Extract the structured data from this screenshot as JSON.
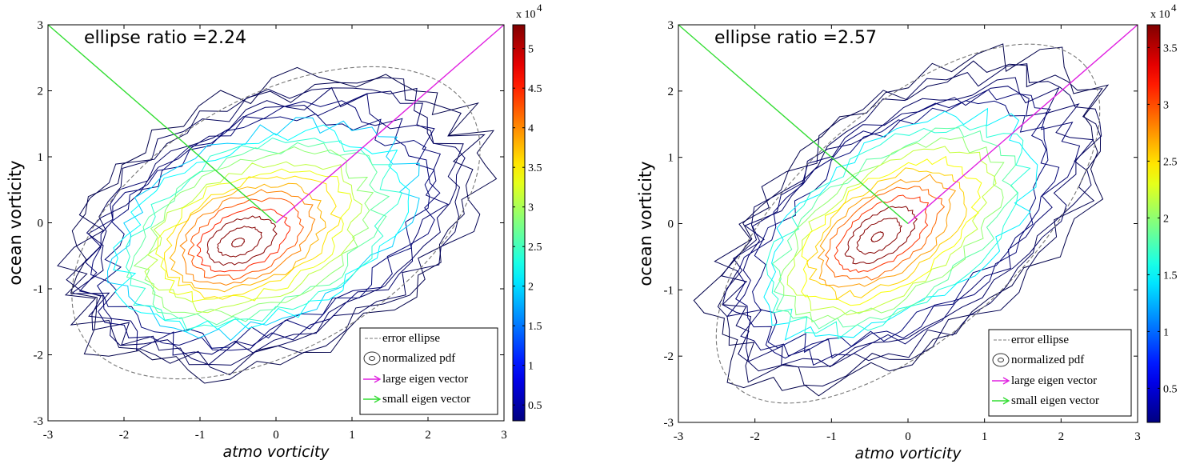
{
  "chart_data": [
    {
      "type": "contour",
      "annotation": "ellipse ratio =2.24",
      "xlabel": "atmo vorticity",
      "ylabel": "ocean vorticity",
      "xlim": [
        -3,
        3
      ],
      "ylim": [
        -3,
        3
      ],
      "xticks": [
        "-3",
        "-2",
        "-1",
        "0",
        "1",
        "2",
        "3"
      ],
      "yticks": [
        "-3",
        "-2",
        "-1",
        "0",
        "1",
        "2",
        "3"
      ],
      "colorbar": {
        "range": [
          0.3,
          5.3
        ],
        "ticks": [
          0.5,
          1,
          1.5,
          2,
          2.5,
          3,
          3.5,
          4,
          4.5,
          5
        ],
        "tick_labels": [
          "0.5",
          "1",
          "1.5",
          "2",
          "2.5",
          "3",
          "3.5",
          "4",
          "4.5",
          "5"
        ],
        "multiplier_prefix": "x 10",
        "multiplier_exponent": "4"
      },
      "pdf_peak": [
        -0.5,
        -0.3
      ],
      "error_ellipse": {
        "center": [
          0,
          0
        ],
        "semi_major": 2.95,
        "semi_minor": 1.9,
        "angle_deg": 30
      },
      "large_eigen_vector": {
        "from": [
          0,
          0
        ],
        "to": [
          3,
          3
        ]
      },
      "small_eigen_vector": {
        "from": [
          0,
          0
        ],
        "to": [
          -3,
          3
        ]
      },
      "legend": [
        "error ellipse",
        "normalized pdf",
        "large eigen vector",
        "small eigen vector"
      ],
      "legend_position": "bottom-right"
    },
    {
      "type": "contour",
      "annotation": "ellipse ratio =2.57",
      "xlabel": "atmo vorticity",
      "ylabel": "ocean vorticity",
      "xlim": [
        -3,
        3
      ],
      "ylim": [
        -3,
        3
      ],
      "xticks": [
        "-3",
        "-2",
        "-1",
        "0",
        "1",
        "2",
        "3"
      ],
      "yticks": [
        "-3",
        "-2",
        "-1",
        "0",
        "1",
        "2",
        "3"
      ],
      "colorbar": {
        "range": [
          0.2,
          3.7
        ],
        "ticks": [
          0.5,
          1,
          1.5,
          2,
          2.5,
          3,
          3.5
        ],
        "tick_labels": [
          "0.5",
          "1",
          "1.5",
          "2",
          "2.5",
          "3",
          "3.5"
        ],
        "multiplier_prefix": "x 10",
        "multiplier_exponent": "4"
      },
      "pdf_peak": [
        -0.4,
        -0.2
      ],
      "error_ellipse": {
        "center": [
          0,
          0
        ],
        "semi_major": 3.1,
        "semi_minor": 1.7,
        "angle_deg": 42
      },
      "large_eigen_vector": {
        "from": [
          0,
          0
        ],
        "to": [
          3,
          3
        ]
      },
      "small_eigen_vector": {
        "from": [
          0,
          0
        ],
        "to": [
          -3,
          3
        ]
      },
      "legend": [
        "error ellipse",
        "normalized pdf",
        "large eigen vector",
        "small eigen vector"
      ],
      "legend_position": "bottom-right"
    }
  ],
  "colors": {
    "large_eigen_vector": "#e020e0",
    "small_eigen_vector": "#33dd33",
    "ellipse": "#777777",
    "outer_contour": "#222222"
  }
}
